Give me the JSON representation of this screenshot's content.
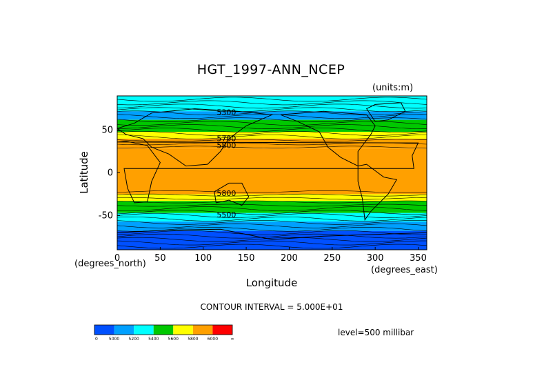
{
  "chart_data": {
    "type": "heatmap",
    "title": "HGT_1997-ANN_NCEP",
    "units_label": "(units:m)",
    "xlabel": "Longitude",
    "ylabel": "Latitude",
    "x_unit_label": "(degrees_east)",
    "y_unit_label": "(degrees_north)",
    "xlim": [
      0,
      360
    ],
    "ylim": [
      -90,
      90
    ],
    "x_ticks": [
      0,
      50,
      100,
      150,
      200,
      250,
      300,
      350
    ],
    "y_ticks": [
      50,
      0,
      -50
    ],
    "contour_interval_label": "CONTOUR INTERVAL = 5.000E+01",
    "level_label": "level=500 millibar",
    "contour_labels": [
      {
        "text": "5300",
        "lon": 127,
        "lat": 68
      },
      {
        "text": "5700",
        "lon": 127,
        "lat": 37
      },
      {
        "text": "5800",
        "lon": 127,
        "lat": 29
      },
      {
        "text": "5800",
        "lon": 127,
        "lat": -27
      },
      {
        "text": "5500",
        "lon": 127,
        "lat": -52
      }
    ],
    "bands": [
      {
        "lat_top": 90,
        "lat_bottom": 72,
        "color": "#00ffff"
      },
      {
        "lat_top": 72,
        "lat_bottom": 62,
        "color": "#00a0ff"
      },
      {
        "lat_top": 62,
        "lat_bottom": 48,
        "color": "#00c800"
      },
      {
        "lat_top": 48,
        "lat_bottom": 40,
        "color": "#ffff00"
      },
      {
        "lat_top": 40,
        "lat_bottom": 28,
        "color": "#ffa000"
      },
      {
        "lat_top": 28,
        "lat_bottom": -25,
        "color": "#ffa000"
      },
      {
        "lat_top": -25,
        "lat_bottom": -33,
        "color": "#ffff00"
      },
      {
        "lat_top": -33,
        "lat_bottom": -47,
        "color": "#00c800"
      },
      {
        "lat_top": -47,
        "lat_bottom": -57,
        "color": "#00ffff"
      },
      {
        "lat_top": -57,
        "lat_bottom": -68,
        "color": "#00a0ff"
      },
      {
        "lat_top": -68,
        "lat_bottom": -90,
        "color": "#0050ff"
      }
    ],
    "colorbar": {
      "colors": [
        "#0050ff",
        "#00a0ff",
        "#00ffff",
        "#00c800",
        "#ffff00",
        "#ffa000",
        "#ff0000"
      ],
      "tick_labels": [
        "0",
        "5000",
        "5200",
        "5400",
        "5600",
        "5800",
        "6000",
        "∞"
      ]
    }
  }
}
